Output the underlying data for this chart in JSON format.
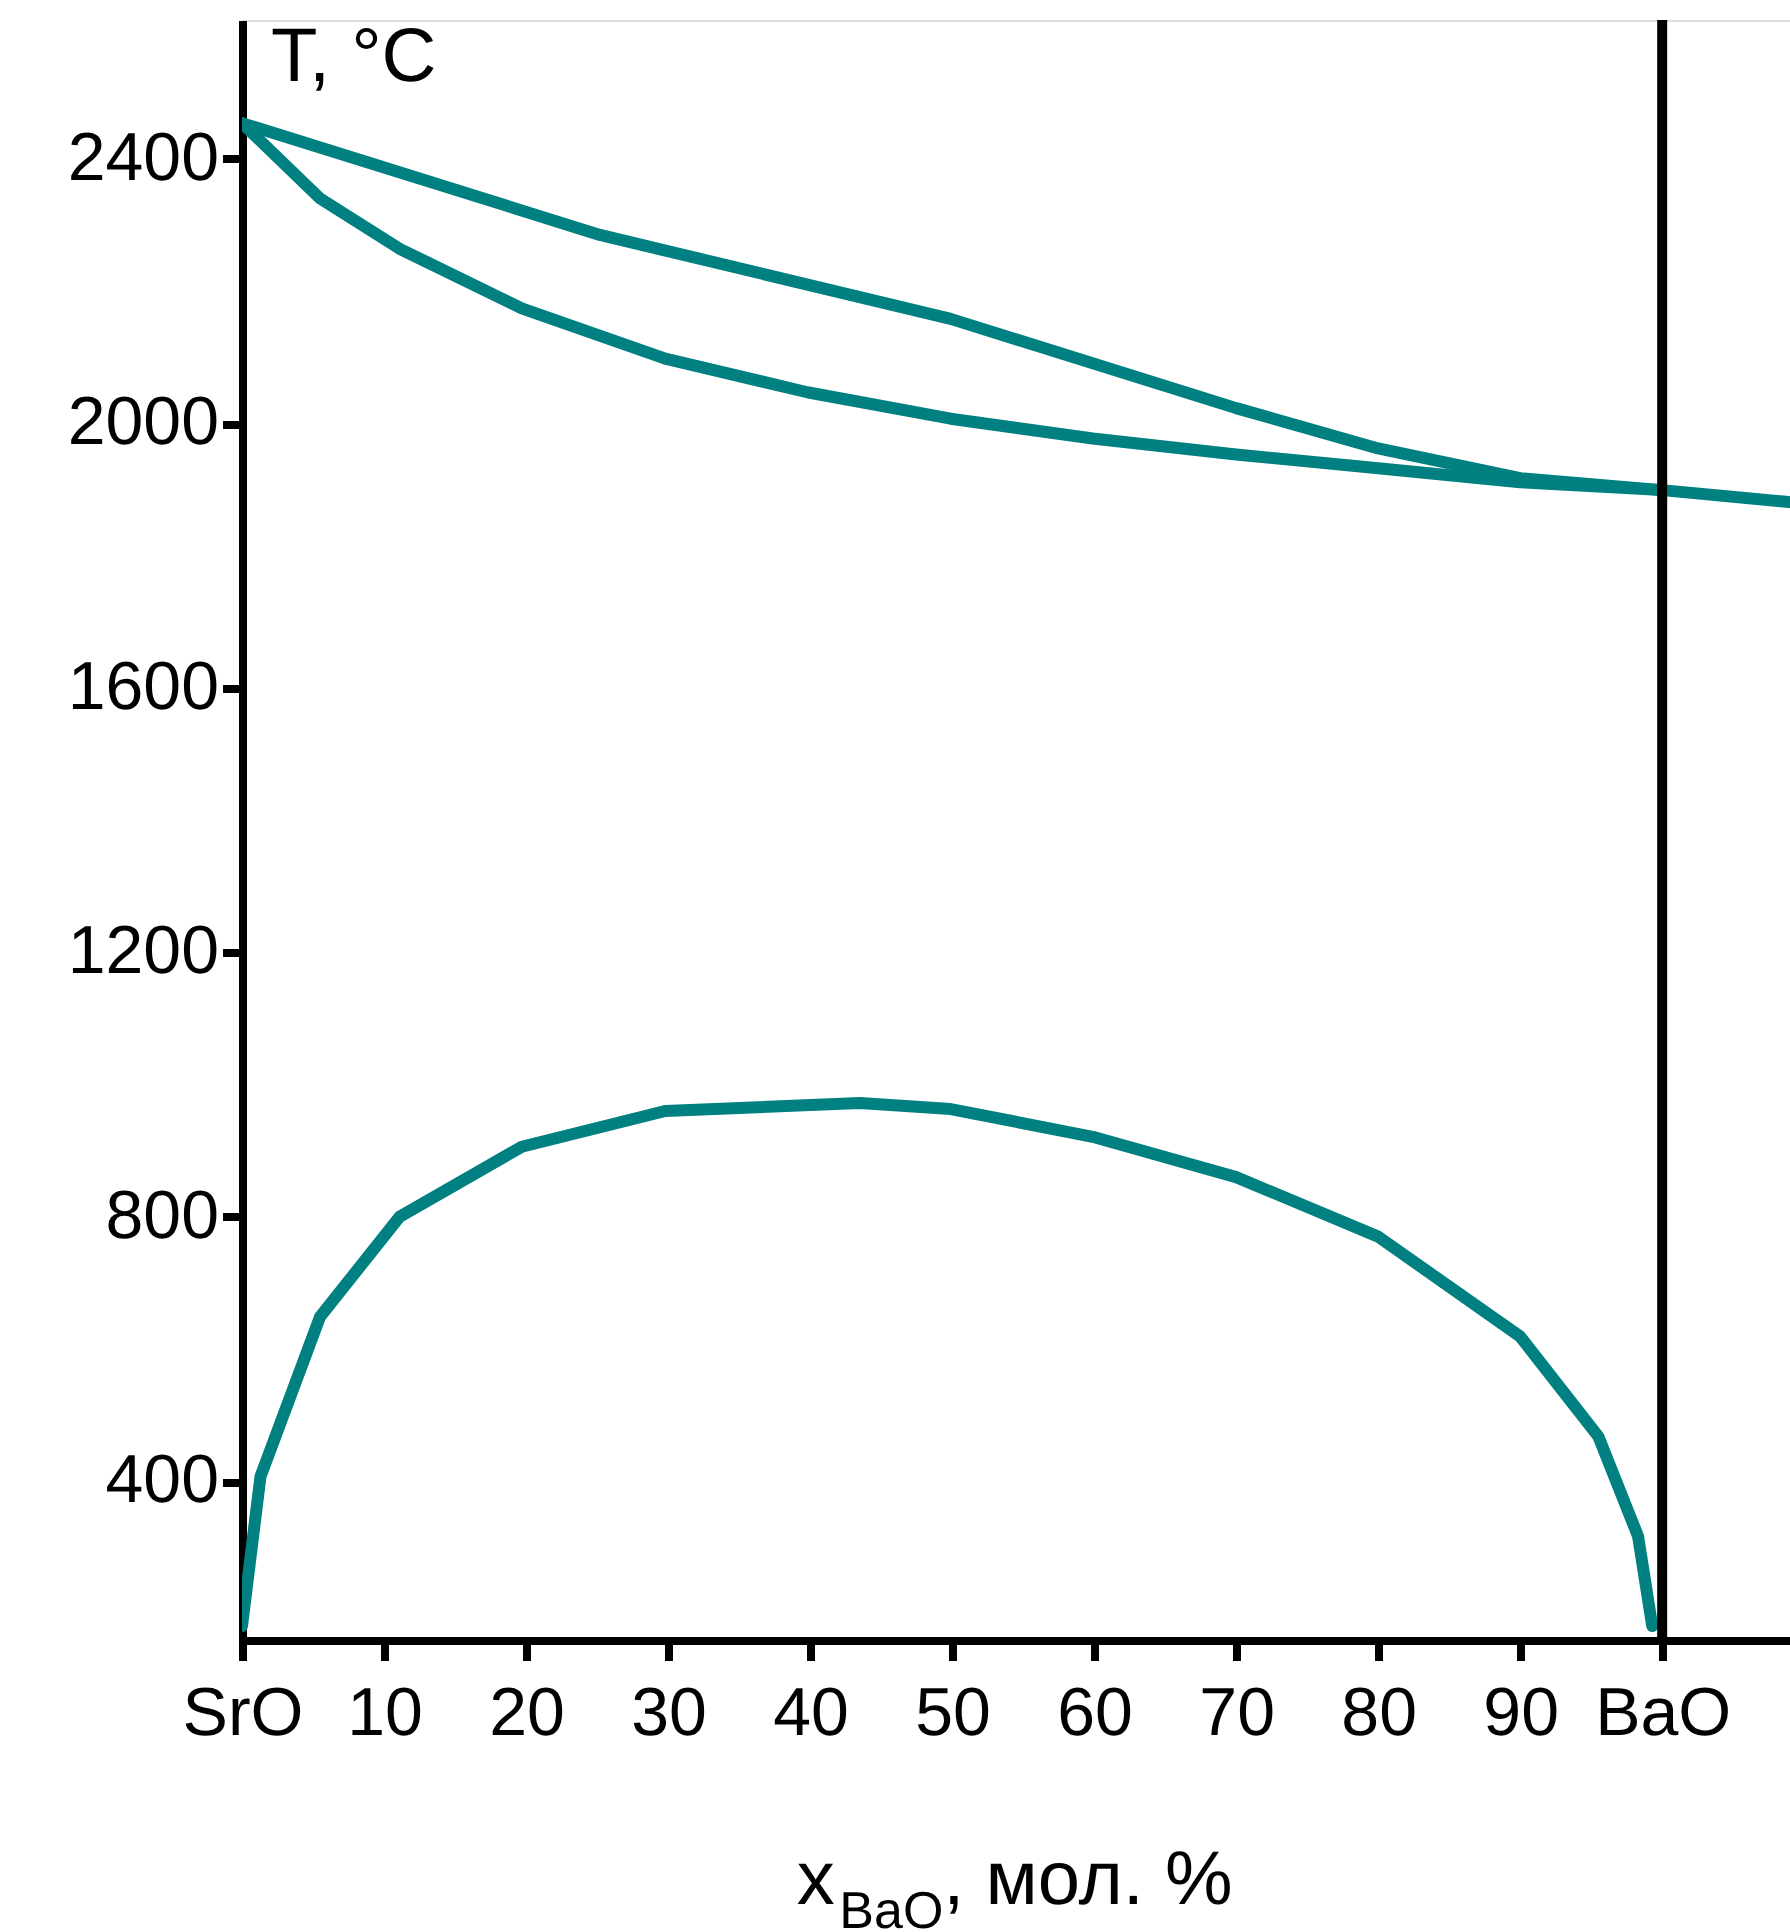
{
  "chart_data": {
    "type": "line",
    "xlabel": "x$_{BaO}$, мол. %",
    "ylabel": "T, °C",
    "xlim": [
      0,
      109
    ],
    "ylim": [
      160,
      2610
    ],
    "xticks": [
      {
        "value": 0,
        "label": "SrO"
      },
      10,
      20,
      30,
      40,
      50,
      60,
      70,
      80,
      90,
      {
        "value": 100,
        "label": "BaO"
      }
    ],
    "yticks": [
      400,
      800,
      1200,
      1600,
      2000,
      2400
    ],
    "grid": false,
    "marker": "none",
    "line_style": "solid",
    "ref_lines": [
      {
        "axis": "x",
        "value": 100,
        "color": "#000000"
      }
    ],
    "series": [
      {
        "color": "#008080",
        "x": [
          0,
          25.2,
          49.9,
          70,
          80,
          90,
          100,
          108.9
        ],
        "values": [
          2454,
          2285,
          2158,
          2023,
          1962,
          1917,
          1899,
          1881
        ]
      },
      {
        "color": "#008080",
        "x": [
          0,
          5.5,
          11.1,
          19.7,
          29.8,
          39.8,
          49.9,
          59.9,
          70,
          80,
          90,
          100
        ],
        "values": [
          2454,
          2340,
          2264,
          2174,
          2098,
          2047,
          2007,
          1977,
          1953,
          1932,
          1911,
          1899
        ]
      },
      {
        "color": "#008080",
        "x": [
          0,
          1.3,
          5.5,
          11.1,
          19.7,
          29.8,
          43.5,
          49.9,
          59.9,
          70,
          80,
          90,
          95.5,
          98.3,
          99.3
        ],
        "values": [
          181,
          407,
          649,
          800,
          906,
          960,
          972,
          963,
          921,
          860,
          770,
          619,
          468,
          317,
          181
        ]
      }
    ]
  }
}
